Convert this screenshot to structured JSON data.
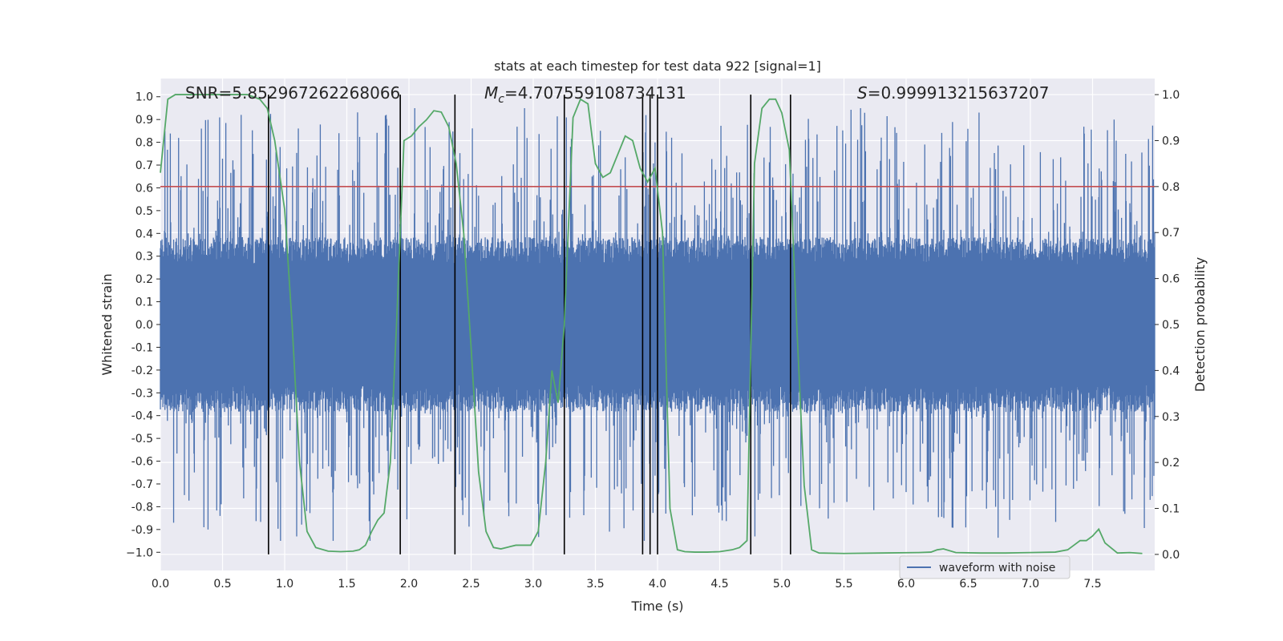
{
  "chart_data": {
    "type": "line",
    "title": "stats at each timestep for test data 922 [signal=1]",
    "xlabel": "Time (s)",
    "ylabel": "Whitened strain",
    "ylabel_right": "Detection probability",
    "xlim": [
      0.0,
      8.0
    ],
    "ylim": [
      -1.08,
      1.08
    ],
    "ylim_right": [
      -0.035,
      1.035
    ],
    "xticks": [
      "0.0",
      "0.5",
      "1.0",
      "1.5",
      "2.0",
      "2.5",
      "3.0",
      "3.5",
      "4.0",
      "4.5",
      "5.0",
      "5.5",
      "6.0",
      "6.5",
      "7.0",
      "7.5"
    ],
    "yticks": [
      "1.0",
      "0.9",
      "0.8",
      "0.7",
      "0.6",
      "0.5",
      "0.4",
      "0.3",
      "0.2",
      "0.1",
      "0.0",
      "-0.1",
      "-0.2",
      "-0.3",
      "-0.4",
      "-0.5",
      "-0.6",
      "-0.7",
      "-0.8",
      "-0.9",
      "−1.0"
    ],
    "yticks_right": [
      "1.0",
      "0.9",
      "0.8",
      "0.7",
      "0.6",
      "0.5",
      "0.4",
      "0.3",
      "0.2",
      "0.1",
      "0.0"
    ],
    "annotations": {
      "snr": "SNR=5.852967262268066",
      "mc_symbol": "M",
      "mc_sub": "c",
      "mc_value": "=4.707559108734131",
      "s_symbol": "S",
      "s_value": "=0.999913215637207"
    },
    "legend": {
      "label": "waveform with noise",
      "location": "lower-right"
    },
    "threshold": {
      "value": 0.8,
      "axis": "right",
      "color": "#c44e52"
    },
    "vertical_lines": {
      "x": [
        0.87,
        1.93,
        2.37,
        3.25,
        3.88,
        3.94,
        4.0,
        4.75,
        5.07
      ],
      "ymin_right": 0.0,
      "ymax_right": 1.0,
      "color": "#000000"
    },
    "series": [
      {
        "name": "waveform with noise",
        "axis": "left",
        "color": "#4c72b0",
        "seed": 922,
        "base_amplitude": 0.3,
        "spike_max": 0.95,
        "note": "dense noisy strain trace, approx. within [-0.95, 0.95]"
      },
      {
        "name": "detection probability",
        "axis": "right",
        "color": "#55a868",
        "x": [
          0.0,
          0.06,
          0.12,
          0.2,
          0.3,
          0.4,
          0.5,
          0.6,
          0.7,
          0.8,
          0.86,
          0.92,
          1.0,
          1.06,
          1.12,
          1.18,
          1.25,
          1.35,
          1.45,
          1.55,
          1.6,
          1.65,
          1.7,
          1.75,
          1.8,
          1.85,
          1.9,
          1.96,
          2.02,
          2.08,
          2.14,
          2.2,
          2.26,
          2.32,
          2.38,
          2.44,
          2.5,
          2.56,
          2.62,
          2.68,
          2.74,
          2.8,
          2.86,
          2.92,
          2.98,
          3.04,
          3.1,
          3.15,
          3.2,
          3.25,
          3.32,
          3.38,
          3.44,
          3.5,
          3.56,
          3.62,
          3.68,
          3.74,
          3.8,
          3.86,
          3.92,
          3.98,
          4.04,
          4.1,
          4.16,
          4.22,
          4.3,
          4.4,
          4.5,
          4.6,
          4.66,
          4.72,
          4.78,
          4.84,
          4.9,
          4.95,
          5.0,
          5.06,
          5.12,
          5.18,
          5.24,
          5.3,
          5.5,
          5.8,
          6.1,
          6.2,
          6.25,
          6.3,
          6.4,
          6.6,
          6.8,
          7.0,
          7.2,
          7.3,
          7.35,
          7.4,
          7.45,
          7.5,
          7.55,
          7.6,
          7.7,
          7.8,
          7.9
        ],
        "y": [
          0.83,
          0.99,
          1.0,
          1.0,
          1.0,
          1.0,
          1.0,
          1.0,
          1.0,
          0.99,
          0.97,
          0.9,
          0.75,
          0.5,
          0.2,
          0.05,
          0.015,
          0.007,
          0.006,
          0.007,
          0.01,
          0.02,
          0.05,
          0.075,
          0.09,
          0.2,
          0.5,
          0.9,
          0.91,
          0.93,
          0.945,
          0.965,
          0.962,
          0.93,
          0.85,
          0.7,
          0.45,
          0.18,
          0.05,
          0.015,
          0.012,
          0.016,
          0.02,
          0.02,
          0.02,
          0.05,
          0.2,
          0.4,
          0.33,
          0.5,
          0.95,
          0.99,
          0.98,
          0.85,
          0.82,
          0.83,
          0.87,
          0.91,
          0.9,
          0.84,
          0.81,
          0.84,
          0.7,
          0.1,
          0.01,
          0.006,
          0.005,
          0.005,
          0.006,
          0.01,
          0.015,
          0.03,
          0.85,
          0.97,
          0.99,
          0.99,
          0.96,
          0.88,
          0.5,
          0.15,
          0.01,
          0.003,
          0.002,
          0.003,
          0.004,
          0.005,
          0.01,
          0.012,
          0.004,
          0.003,
          0.003,
          0.004,
          0.005,
          0.01,
          0.02,
          0.03,
          0.03,
          0.04,
          0.055,
          0.025,
          0.003,
          0.004,
          0.002
        ]
      }
    ]
  }
}
